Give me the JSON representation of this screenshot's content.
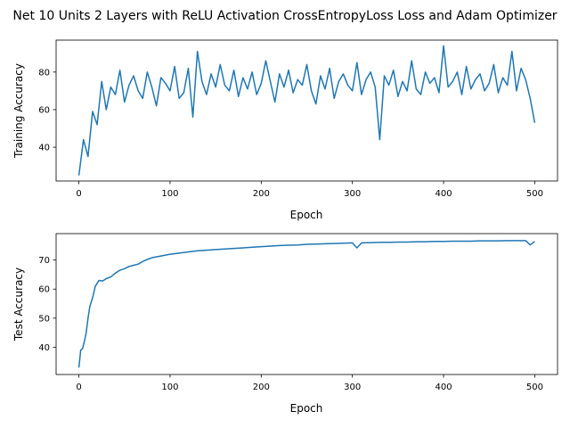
{
  "figure": {
    "title": "Net 10 Units 2 Layers with ReLU Activation CrossEntropyLoss Loss and Adam Optimizer"
  },
  "chart_data": [
    {
      "type": "line",
      "xlabel": "Epoch",
      "ylabel": "Training Accuracy",
      "xlim": [
        -25,
        525
      ],
      "ylim": [
        22,
        97
      ],
      "xticks": [
        0,
        100,
        200,
        300,
        400,
        500
      ],
      "yticks": [
        40,
        60,
        80
      ],
      "grid": false,
      "line_color": "#1f77b4",
      "series": [
        {
          "x": [
            0,
            5,
            10,
            15,
            20,
            25,
            30,
            35,
            40,
            45,
            50,
            55,
            60,
            65,
            70,
            75,
            80,
            85,
            90,
            95,
            100,
            105,
            110,
            115,
            120,
            125,
            130,
            135,
            140,
            145,
            150,
            155,
            160,
            165,
            170,
            175,
            180,
            185,
            190,
            195,
            200,
            205,
            210,
            215,
            220,
            225,
            230,
            235,
            240,
            245,
            250,
            255,
            260,
            265,
            270,
            275,
            280,
            285,
            290,
            295,
            300,
            305,
            310,
            315,
            320,
            325,
            330,
            335,
            340,
            345,
            350,
            355,
            360,
            365,
            370,
            375,
            380,
            385,
            390,
            395,
            400,
            405,
            410,
            415,
            420,
            425,
            430,
            435,
            440,
            445,
            450,
            455,
            460,
            465,
            470,
            475,
            480,
            485,
            490,
            495,
            500
          ],
          "values": [
            25,
            44,
            35,
            59,
            52,
            75,
            60,
            72,
            68,
            81,
            64,
            73,
            78,
            70,
            66,
            80,
            72,
            62,
            77,
            74,
            70,
            83,
            66,
            69,
            82,
            56,
            91,
            75,
            68,
            79,
            72,
            84,
            73,
            70,
            81,
            67,
            77,
            71,
            80,
            68,
            74,
            86,
            75,
            64,
            79,
            72,
            81,
            69,
            76,
            73,
            84,
            70,
            63,
            78,
            71,
            82,
            66,
            75,
            79,
            73,
            70,
            85,
            68,
            76,
            80,
            72,
            44,
            78,
            73,
            81,
            67,
            75,
            70,
            86,
            71,
            68,
            80,
            74,
            77,
            69,
            94,
            72,
            75,
            80,
            68,
            83,
            71,
            76,
            79,
            70,
            74,
            84,
            69,
            77,
            73,
            91,
            70,
            82,
            76,
            66,
            53
          ]
        }
      ]
    },
    {
      "type": "line",
      "xlabel": "Epoch",
      "ylabel": "Test Accuracy",
      "xlim": [
        -25,
        525
      ],
      "ylim": [
        30.6,
        79.1
      ],
      "xticks": [
        0,
        100,
        200,
        300,
        400,
        500
      ],
      "yticks": [
        40,
        50,
        60,
        70
      ],
      "grid": false,
      "line_color": "#1f77b4",
      "series": [
        {
          "x": [
            0,
            2,
            4,
            6,
            8,
            10,
            12,
            15,
            18,
            22,
            26,
            30,
            35,
            40,
            45,
            50,
            55,
            60,
            65,
            70,
            75,
            80,
            90,
            100,
            110,
            120,
            130,
            140,
            150,
            160,
            170,
            180,
            190,
            200,
            210,
            220,
            230,
            240,
            250,
            260,
            270,
            280,
            290,
            300,
            305,
            310,
            320,
            330,
            340,
            350,
            360,
            370,
            380,
            390,
            400,
            410,
            420,
            430,
            440,
            450,
            460,
            470,
            480,
            490,
            495,
            500
          ],
          "values": [
            33,
            39,
            39.5,
            42,
            45,
            50,
            54,
            57,
            61,
            63,
            62.8,
            63.6,
            64.2,
            65.5,
            66.5,
            67,
            67.8,
            68.2,
            68.6,
            69.5,
            70.2,
            70.8,
            71.4,
            72,
            72.4,
            72.8,
            73.2,
            73.4,
            73.6,
            73.8,
            74,
            74.2,
            74.4,
            74.6,
            74.8,
            75,
            75.1,
            75.2,
            75.4,
            75.5,
            75.6,
            75.7,
            75.8,
            75.9,
            74.2,
            75.9,
            76,
            76.1,
            76.1,
            76.2,
            76.2,
            76.3,
            76.3,
            76.4,
            76.4,
            76.5,
            76.5,
            76.5,
            76.6,
            76.6,
            76.6,
            76.7,
            76.7,
            76.7,
            75.2,
            76.4
          ]
        }
      ]
    }
  ]
}
